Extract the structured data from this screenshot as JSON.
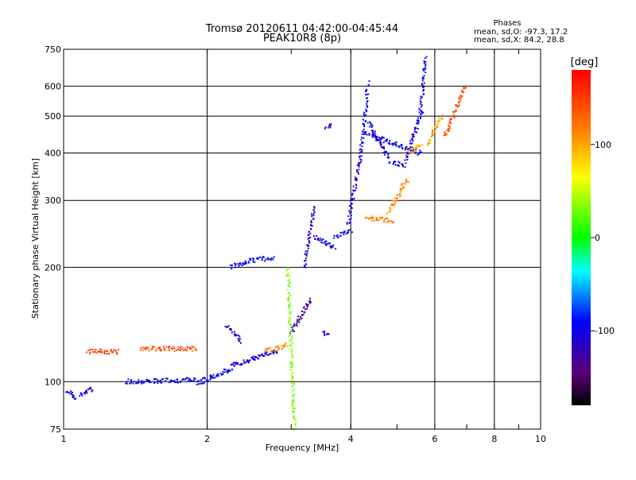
{
  "chart_data": {
    "type": "scatter",
    "title": "Tromsø 20120611 04:42:00-04:45:44",
    "subtitle": "PEAK10R8 (8p)",
    "stats_header": "Phases",
    "stats_o": "mean, sd,O: -97.3, 17.2",
    "stats_x": "mean, sd,X:  84.2, 28.8",
    "xlabel": "Frequency [MHz]",
    "ylabel": "Stationary phase Virtual Height [km]",
    "x_scale": "log",
    "y_scale": "log",
    "xlim": [
      1,
      10
    ],
    "ylim": [
      75,
      750
    ],
    "x_ticks": [
      1,
      2,
      4,
      6,
      8,
      10
    ],
    "x_tick_labels": [
      "1",
      "2",
      "4",
      "6",
      "8",
      "10"
    ],
    "y_ticks": [
      75,
      100,
      200,
      300,
      400,
      500,
      600,
      750
    ],
    "y_tick_labels": [
      "75",
      "100",
      "200",
      "300",
      "400",
      "500",
      "600",
      "750"
    ],
    "grid": true,
    "colorbar": {
      "label": "[deg]",
      "range": [
        -180,
        180
      ],
      "ticks": [
        100,
        0,
        -100
      ],
      "tick_labels": [
        "100",
        "0",
        "-100"
      ]
    },
    "series": [
      {
        "segments": [
          {
            "f": [
              1.02,
              1.06
            ],
            "h": [
              95,
              90
            ],
            "phase": -100
          },
          {
            "f": [
              1.08,
              1.15
            ],
            "h": [
              92,
              96
            ],
            "phase": -105
          },
          {
            "f": [
              1.35,
              1.9
            ],
            "h": [
              100,
              101
            ],
            "phase": -100
          },
          {
            "f": [
              1.9,
              2.25
            ],
            "h": [
              99,
              108
            ],
            "phase": -95
          },
          {
            "f": [
              2.25,
              2.6
            ],
            "h": [
              110,
              117
            ],
            "phase": -100
          },
          {
            "f": [
              2.6,
              2.8
            ],
            "h": [
              118,
              120
            ],
            "phase": -110
          },
          {
            "f": [
              2.25,
              2.45
            ],
            "h": [
              200,
              208
            ],
            "phase": -100
          },
          {
            "f": [
              2.45,
              2.75
            ],
            "h": [
              208,
              212
            ],
            "phase": -90
          },
          {
            "f": [
              2.2,
              2.35
            ],
            "h": [
              140,
              128
            ],
            "phase": -100
          },
          {
            "f": [
              3.0,
              3.3
            ],
            "h": [
              135,
              165
            ],
            "phase": -130
          },
          {
            "f": [
              3.2,
              3.35
            ],
            "h": [
              200,
              290
            ],
            "phase": -105
          },
          {
            "f": [
              3.35,
              3.7
            ],
            "h": [
              240,
              225
            ],
            "phase": -100
          },
          {
            "f": [
              3.7,
              4.0
            ],
            "h": [
              240,
              250
            ],
            "phase": -100
          },
          {
            "f": [
              3.95,
              4.2
            ],
            "h": [
              260,
              400
            ],
            "phase": -100
          },
          {
            "f": [
              4.2,
              4.35
            ],
            "h": [
              400,
              610
            ],
            "phase": -100
          },
          {
            "f": [
              4.35,
              4.8
            ],
            "h": [
              480,
              390
            ],
            "phase": -100
          },
          {
            "f": [
              4.8,
              5.2
            ],
            "h": [
              380,
              372
            ],
            "phase": -100
          },
          {
            "f": [
              5.2,
              5.65
            ],
            "h": [
              380,
              520
            ],
            "phase": -100
          },
          {
            "f": [
              5.6,
              5.75
            ],
            "h": [
              520,
              710
            ],
            "phase": -100
          },
          {
            "f": [
              4.3,
              5.6
            ],
            "h": [
              450,
              400
            ],
            "phase": -100
          },
          {
            "f": [
              3.55,
              3.65
            ],
            "h": [
              465,
              475
            ],
            "phase": -100
          },
          {
            "f": [
              3.5,
              3.6
            ],
            "h": [
              135,
              133
            ],
            "phase": -100
          },
          {
            "f": [
              4.3,
              4.9
            ],
            "h": [
              270,
              265
            ],
            "phase": 120
          },
          {
            "f": [
              4.8,
              5.25
            ],
            "h": [
              280,
              340
            ],
            "phase": 110
          },
          {
            "f": [
              5.3,
              5.6
            ],
            "h": [
              400,
              420
            ],
            "phase": 95
          },
          {
            "f": [
              5.8,
              6.2
            ],
            "h": [
              420,
              500
            ],
            "phase": 100
          },
          {
            "f": [
              6.3,
              6.95
            ],
            "h": [
              440,
              600
            ],
            "phase": 140
          },
          {
            "f": [
              1.45,
              1.9
            ],
            "h": [
              122,
              122
            ],
            "phase": 140
          },
          {
            "f": [
              2.65,
              2.95
            ],
            "h": [
              120,
              125
            ],
            "phase": 110
          },
          {
            "f": [
              2.95,
              3.05
            ],
            "h": [
              200,
              75
            ],
            "phase": 30
          },
          {
            "f": [
              1.12,
              1.3
            ],
            "h": [
              120,
              120
            ],
            "phase": 150
          }
        ]
      }
    ]
  }
}
